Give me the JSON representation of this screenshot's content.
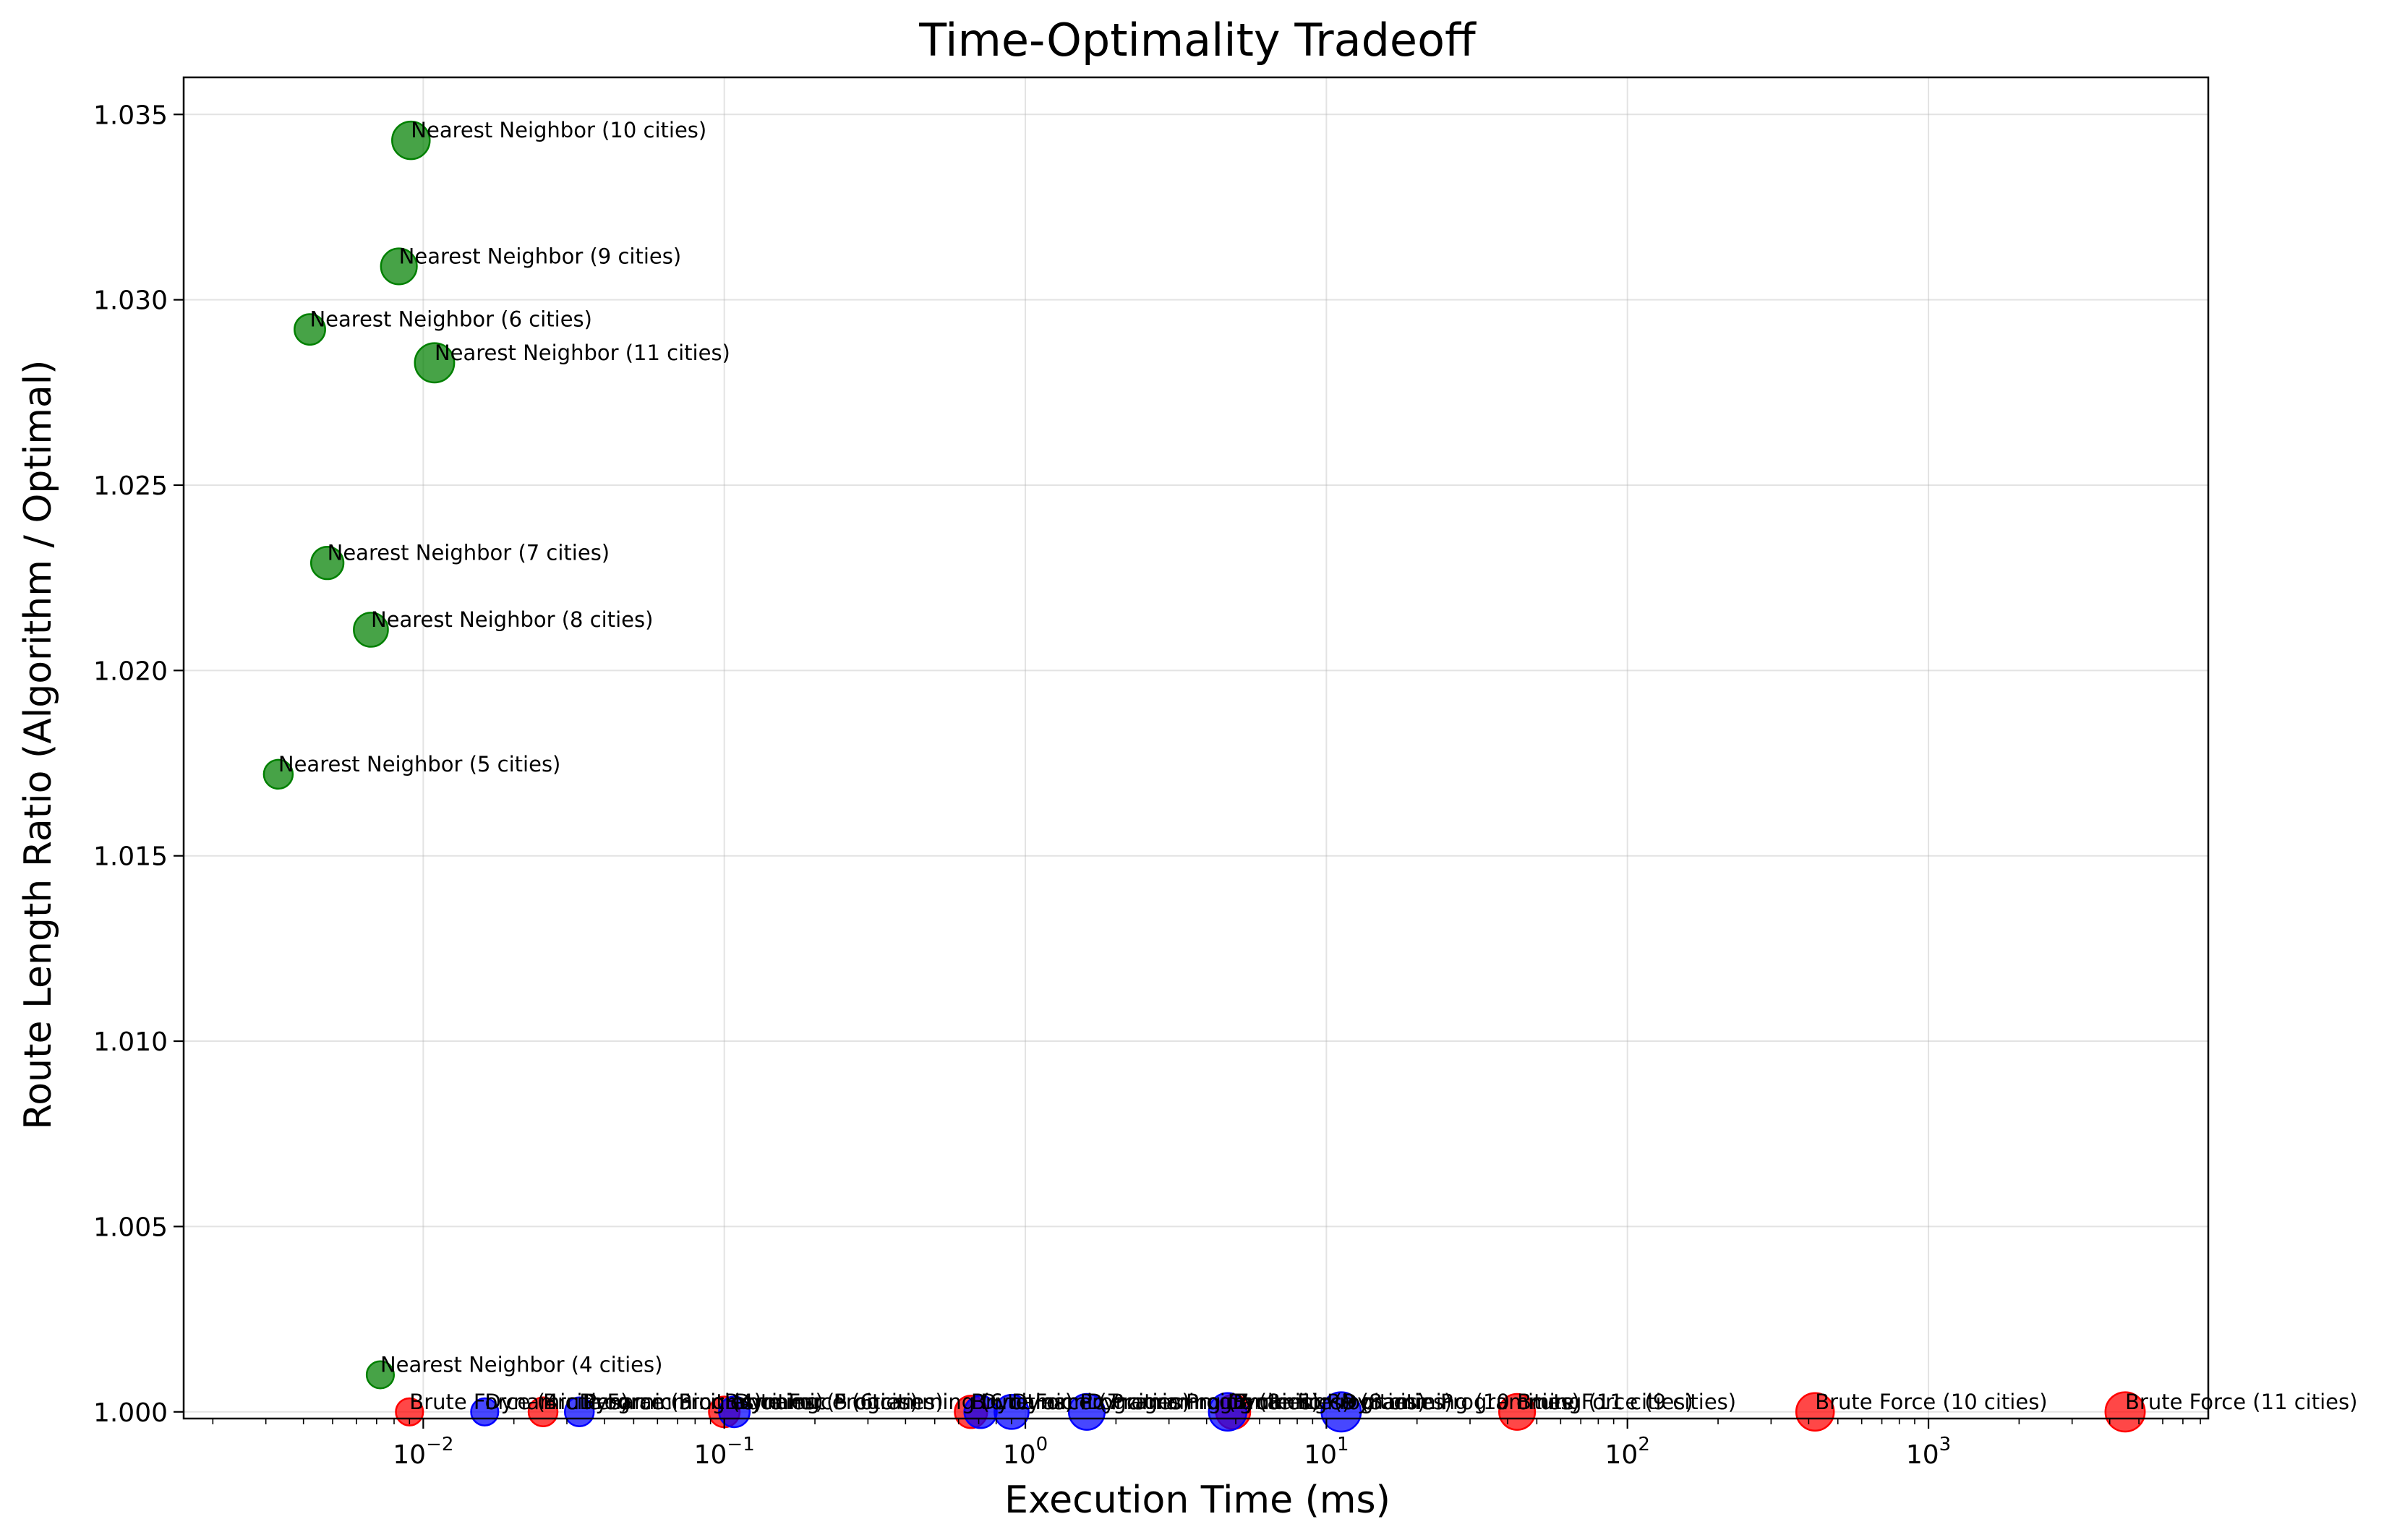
{
  "chart_data": {
    "type": "scatter",
    "title": "Time-Optimality Tradeoff",
    "xlabel": "Execution Time (ms)",
    "ylabel": "Route Length Ratio (Algorithm / Optimal)",
    "xscale": "log",
    "xlim": [
      0.0016,
      8500
    ],
    "ylim": [
      0.99982,
      1.036
    ],
    "grid": true,
    "x_ticks": [
      {
        "value": 0.01,
        "base": "10",
        "exp": "−2"
      },
      {
        "value": 0.1,
        "base": "10",
        "exp": "−1"
      },
      {
        "value": 1,
        "base": "10",
        "exp": "0"
      },
      {
        "value": 10,
        "base": "10",
        "exp": "1"
      },
      {
        "value": 100,
        "base": "10",
        "exp": "2"
      },
      {
        "value": 1000,
        "base": "10",
        "exp": "3"
      }
    ],
    "y_ticks": [
      {
        "value": 1.0,
        "label": "1.000"
      },
      {
        "value": 1.005,
        "label": "1.005"
      },
      {
        "value": 1.01,
        "label": "1.010"
      },
      {
        "value": 1.015,
        "label": "1.015"
      },
      {
        "value": 1.02,
        "label": "1.020"
      },
      {
        "value": 1.025,
        "label": "1.025"
      },
      {
        "value": 1.03,
        "label": "1.030"
      },
      {
        "value": 1.035,
        "label": "1.035"
      }
    ],
    "series": [
      {
        "color": "#008000",
        "points": [
          {
            "label": "Nearest Neighbor (4 cities)",
            "x": 0.0072,
            "y": 1.001,
            "size": 4
          },
          {
            "label": "Nearest Neighbor (5 cities)",
            "x": 0.0033,
            "y": 1.0172,
            "size": 5
          },
          {
            "label": "Nearest Neighbor (6 cities)",
            "x": 0.0042,
            "y": 1.0292,
            "size": 6
          },
          {
            "label": "Nearest Neighbor (7 cities)",
            "x": 0.0048,
            "y": 1.0229,
            "size": 7
          },
          {
            "label": "Nearest Neighbor (8 cities)",
            "x": 0.0067,
            "y": 1.0211,
            "size": 8
          },
          {
            "label": "Nearest Neighbor (9 cities)",
            "x": 0.0083,
            "y": 1.0309,
            "size": 9
          },
          {
            "label": "Nearest Neighbor (10 cities)",
            "x": 0.0091,
            "y": 1.0343,
            "size": 10
          },
          {
            "label": "Nearest Neighbor (11 cities)",
            "x": 0.0109,
            "y": 1.0283,
            "size": 11
          }
        ]
      },
      {
        "color": "#ff0000",
        "points": [
          {
            "label": "Brute Force (4 cities)",
            "x": 0.009,
            "y": 1.0,
            "size": 4
          },
          {
            "label": "Brute Force (5 cities)",
            "x": 0.025,
            "y": 1.0,
            "size": 5
          },
          {
            "label": "Brute Force (6 cities)",
            "x": 0.1,
            "y": 1.0,
            "size": 6
          },
          {
            "label": "Brute Force (7 cities)",
            "x": 0.66,
            "y": 1.0,
            "size": 7
          },
          {
            "label": "Brute Force (8 cities)",
            "x": 4.9,
            "y": 1.0,
            "size": 8
          },
          {
            "label": "Brute Force (9 cities)",
            "x": 43,
            "y": 1.0,
            "size": 9
          },
          {
            "label": "Brute Force (10 cities)",
            "x": 420,
            "y": 1.0,
            "size": 10
          },
          {
            "label": "Brute Force (11 cities)",
            "x": 4500,
            "y": 1.0,
            "size": 11
          }
        ]
      },
      {
        "color": "#0000ff",
        "points": [
          {
            "label": "Dynamic Programming (4 cities)",
            "x": 0.016,
            "y": 1.0,
            "size": 4
          },
          {
            "label": "Dynamic Programming (5 cities)",
            "x": 0.033,
            "y": 1.0,
            "size": 5
          },
          {
            "label": "Dynamic Programming (6 cities)",
            "x": 0.108,
            "y": 1.0,
            "size": 6
          },
          {
            "label": "Dynamic Programming (7 cities)",
            "x": 0.71,
            "y": 1.0,
            "size": 7
          },
          {
            "label": "Dynamic Programming (8 cities)",
            "x": 0.9,
            "y": 1.0,
            "size": 8
          },
          {
            "label": "Dynamic Programming (9 cities)",
            "x": 1.6,
            "y": 1.0,
            "size": 9
          },
          {
            "label": "Dynamic Programming (10 cities)",
            "x": 4.7,
            "y": 1.0,
            "size": 10
          },
          {
            "label": "Dynamic Programming (11 cities)",
            "x": 11.2,
            "y": 1.0,
            "size": 11
          }
        ]
      }
    ]
  }
}
